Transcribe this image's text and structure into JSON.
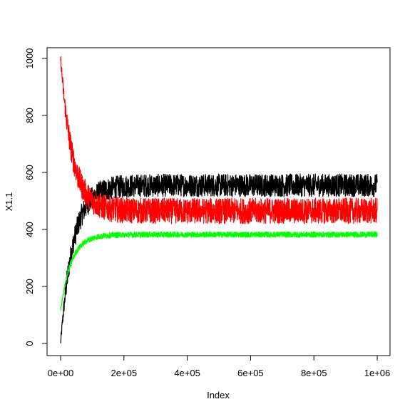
{
  "chart_data": {
    "type": "line",
    "title": "",
    "xlabel": "Index",
    "ylabel": "X1.1",
    "xlim": [
      0,
      1000000
    ],
    "ylim": [
      0,
      1000
    ],
    "x_ticks": [
      {
        "value": 0,
        "label": "0e+00"
      },
      {
        "value": 200000,
        "label": "2e+05"
      },
      {
        "value": 400000,
        "label": "4e+05"
      },
      {
        "value": 600000,
        "label": "6e+05"
      },
      {
        "value": 800000,
        "label": "8e+05"
      },
      {
        "value": 1000000,
        "label": "1e+06"
      }
    ],
    "y_ticks": [
      {
        "value": 0,
        "label": "0"
      },
      {
        "value": 200,
        "label": "200"
      },
      {
        "value": 400,
        "label": "400"
      },
      {
        "value": 600,
        "label": "600"
      },
      {
        "value": 800,
        "label": "800"
      },
      {
        "value": 1000,
        "label": "1000"
      }
    ],
    "grid": false,
    "legend": "none",
    "series": [
      {
        "color": "#000000",
        "start": 0,
        "plateau": 555,
        "rate_per_index": 2.5e-05,
        "spread": 40
      },
      {
        "color": "#ff0000",
        "start": 1000,
        "plateau": 465,
        "rate_per_index": 2.7e-05,
        "spread": 45
      },
      {
        "color": "#00ff00",
        "start": 115,
        "plateau": 382,
        "rate_per_index": 3e-05,
        "spread": 10
      }
    ]
  }
}
